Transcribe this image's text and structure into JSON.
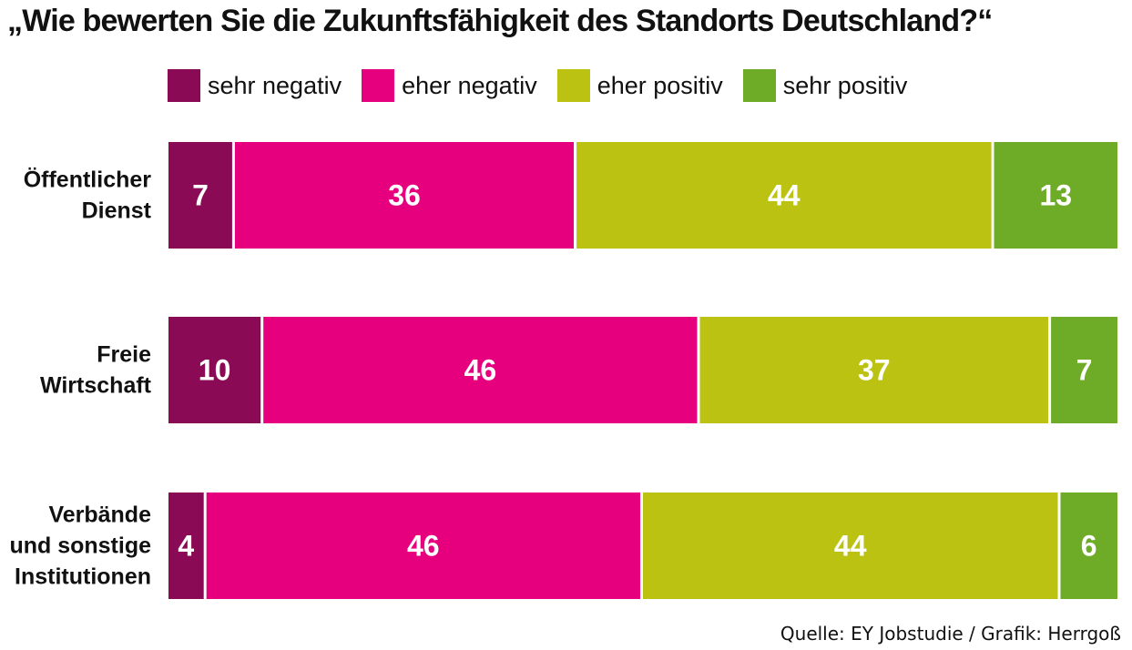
{
  "chart_data": {
    "type": "bar",
    "orientation": "horizontal",
    "stacked": true,
    "title": "„Wie bewerten Sie die Zukunftsfähigkeit des Standorts Deutschland?“",
    "categories": [
      [
        "Öffentlicher",
        "Dienst"
      ],
      [
        "Freie",
        "Wirtschaft"
      ],
      [
        "Verbände",
        "und sonstige",
        "Institutionen"
      ]
    ],
    "series": [
      {
        "name": "sehr negativ",
        "color": "#8a0a55",
        "values": [
          7,
          10,
          4
        ]
      },
      {
        "name": "eher negativ",
        "color": "#e6007e",
        "values": [
          36,
          46,
          46
        ]
      },
      {
        "name": "eher positiv",
        "color": "#bbc212",
        "values": [
          44,
          37,
          44
        ]
      },
      {
        "name": "sehr positiv",
        "color": "#6eab27",
        "values": [
          13,
          7,
          6
        ]
      }
    ],
    "legend_position": "top",
    "grid": false,
    "source": "Quelle: EY Jobstudie / Grafik: Herrgoß"
  }
}
